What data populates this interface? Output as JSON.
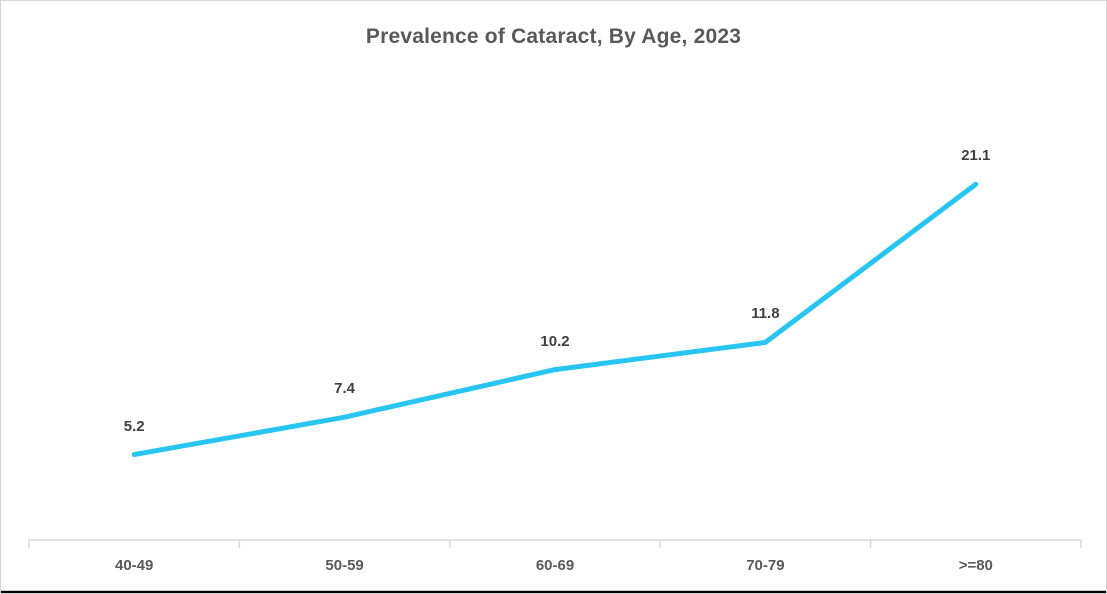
{
  "chart_data": {
    "type": "line",
    "title": "Prevalence of Cataract, By Age, 2023",
    "categories": [
      "40-49",
      "50-59",
      "60-69",
      "70-79",
      ">=80"
    ],
    "values": [
      5.2,
      7.4,
      10.2,
      11.8,
      21.1
    ],
    "series": [
      {
        "name": "Prevalence of Cataract",
        "values": [
          5.2,
          7.4,
          10.2,
          11.8,
          21.1
        ]
      }
    ],
    "xlabel": "",
    "ylabel": "",
    "ylim": [
      0,
      25
    ],
    "layout": {
      "grid": "off",
      "legend": "none",
      "y_axis_visible": false,
      "data_labels": "above points"
    },
    "colors": {
      "line": "#29C5F2",
      "title": "#595959",
      "data_label": "#3F3F3F",
      "axis_label": "#595959",
      "axis_line": "#D9D9D9"
    }
  }
}
